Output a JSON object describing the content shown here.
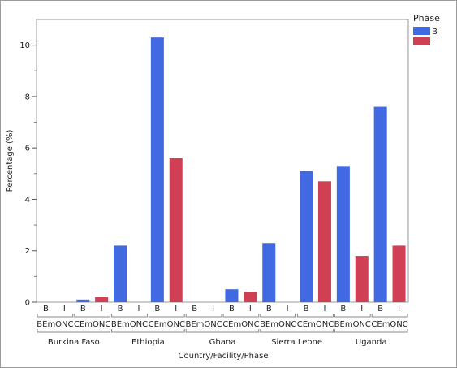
{
  "chart_data": {
    "type": "bar",
    "title": "",
    "ylabel": "Percentage (%)",
    "xlabel": "Country/Facility/Phase",
    "ylim": [
      0,
      11
    ],
    "yticks": [
      0,
      2,
      4,
      6,
      8,
      10
    ],
    "grid": false,
    "legend": {
      "title": "Phase",
      "placement": "top-right",
      "entries": [
        {
          "name": "B",
          "color": "#4169e1"
        },
        {
          "name": "I",
          "color": "#d04055"
        }
      ]
    },
    "countries": [
      "Burkina Faso",
      "Ethiopia",
      "Ghana",
      "Sierra Leone",
      "Uganda"
    ],
    "facilities": [
      "BEmONC",
      "CEmONC"
    ],
    "phases": [
      "B",
      "I"
    ],
    "bars": [
      {
        "country": "Burkina Faso",
        "facility": "BEmONC",
        "phase": "B",
        "value": 0
      },
      {
        "country": "Burkina Faso",
        "facility": "BEmONC",
        "phase": "I",
        "value": 0
      },
      {
        "country": "Burkina Faso",
        "facility": "CEmONC",
        "phase": "B",
        "value": 0.1
      },
      {
        "country": "Burkina Faso",
        "facility": "CEmONC",
        "phase": "I",
        "value": 0.2
      },
      {
        "country": "Ethiopia",
        "facility": "BEmONC",
        "phase": "B",
        "value": 2.2
      },
      {
        "country": "Ethiopia",
        "facility": "BEmONC",
        "phase": "I",
        "value": 0
      },
      {
        "country": "Ethiopia",
        "facility": "CEmONC",
        "phase": "B",
        "value": 10.3
      },
      {
        "country": "Ethiopia",
        "facility": "CEmONC",
        "phase": "I",
        "value": 5.6
      },
      {
        "country": "Ghana",
        "facility": "BEmONC",
        "phase": "B",
        "value": 0
      },
      {
        "country": "Ghana",
        "facility": "BEmONC",
        "phase": "I",
        "value": 0
      },
      {
        "country": "Ghana",
        "facility": "CEmONC",
        "phase": "B",
        "value": 0.5
      },
      {
        "country": "Ghana",
        "facility": "CEmONC",
        "phase": "I",
        "value": 0.4
      },
      {
        "country": "Sierra Leone",
        "facility": "BEmONC",
        "phase": "B",
        "value": 2.3
      },
      {
        "country": "Sierra Leone",
        "facility": "BEmONC",
        "phase": "I",
        "value": 0
      },
      {
        "country": "Sierra Leone",
        "facility": "CEmONC",
        "phase": "B",
        "value": 5.1
      },
      {
        "country": "Sierra Leone",
        "facility": "CEmONC",
        "phase": "I",
        "value": 4.7
      },
      {
        "country": "Uganda",
        "facility": "BEmONC",
        "phase": "B",
        "value": 5.3
      },
      {
        "country": "Uganda",
        "facility": "BEmONC",
        "phase": "I",
        "value": 1.8
      },
      {
        "country": "Uganda",
        "facility": "CEmONC",
        "phase": "B",
        "value": 7.6
      },
      {
        "country": "Uganda",
        "facility": "CEmONC",
        "phase": "I",
        "value": 2.2
      }
    ]
  }
}
